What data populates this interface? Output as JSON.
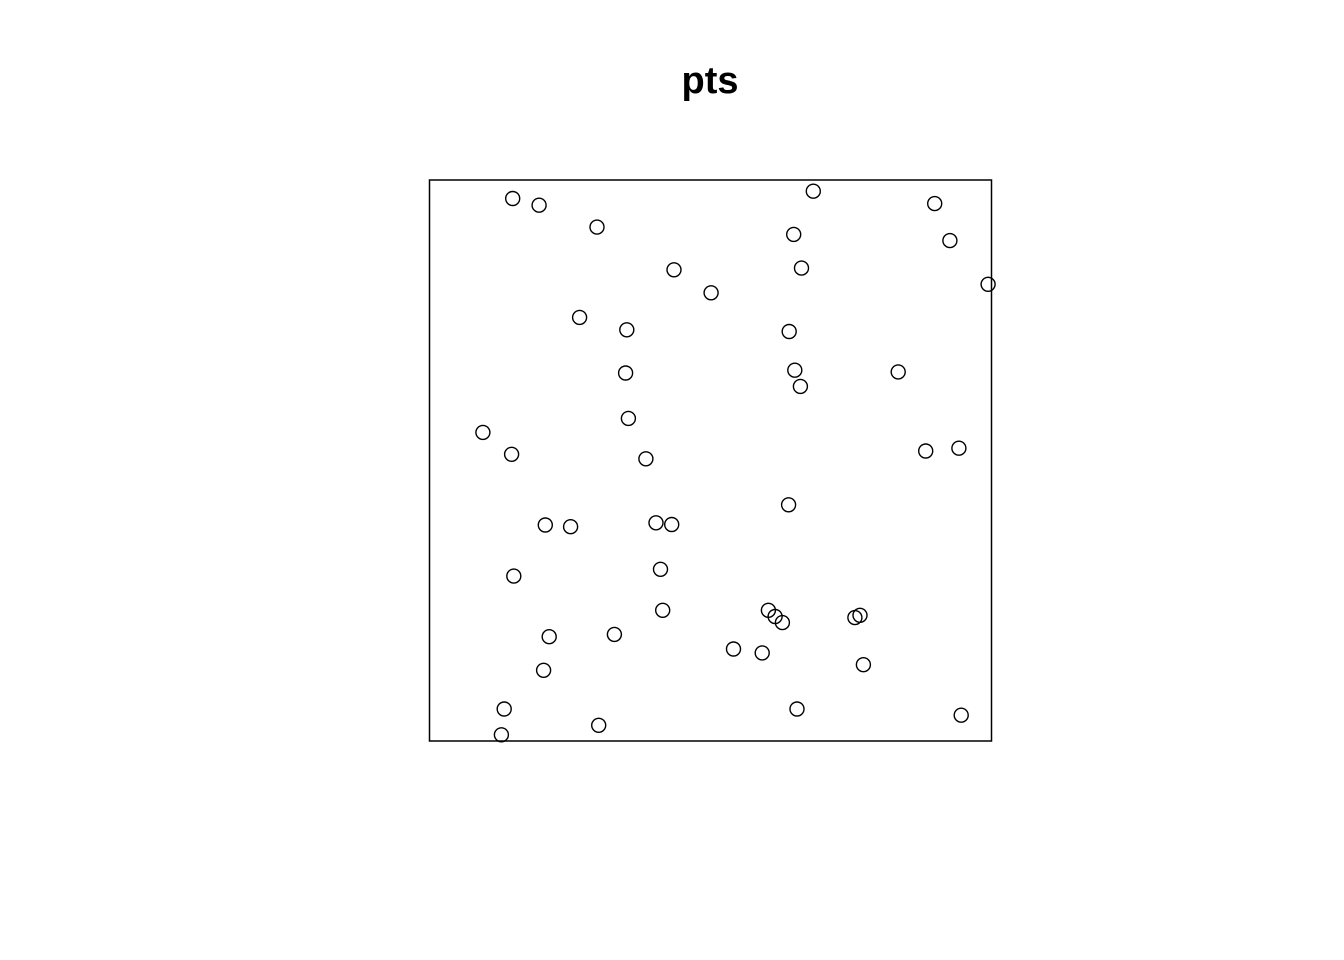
{
  "chart_data": {
    "type": "scatter",
    "title": "pts",
    "xlabel": "",
    "ylabel": "",
    "axes_shown": false,
    "grid": false,
    "legend": "none",
    "marker": "open-circle",
    "colors": {
      "stroke": "#000000",
      "background": "#ffffff"
    },
    "xlim": [
      0,
      1
    ],
    "ylim": [
      0,
      1
    ],
    "points": [
      {
        "x": 0.148,
        "y": 0.967
      },
      {
        "x": 0.195,
        "y": 0.955
      },
      {
        "x": 0.298,
        "y": 0.916
      },
      {
        "x": 0.683,
        "y": 0.98
      },
      {
        "x": 0.648,
        "y": 0.903
      },
      {
        "x": 0.899,
        "y": 0.958
      },
      {
        "x": 0.926,
        "y": 0.892
      },
      {
        "x": 0.435,
        "y": 0.84
      },
      {
        "x": 0.662,
        "y": 0.843
      },
      {
        "x": 0.501,
        "y": 0.799
      },
      {
        "x": 0.994,
        "y": 0.814
      },
      {
        "x": 0.267,
        "y": 0.755
      },
      {
        "x": 0.351,
        "y": 0.733
      },
      {
        "x": 0.64,
        "y": 0.73
      },
      {
        "x": 0.349,
        "y": 0.656
      },
      {
        "x": 0.65,
        "y": 0.661
      },
      {
        "x": 0.66,
        "y": 0.632
      },
      {
        "x": 0.834,
        "y": 0.658
      },
      {
        "x": 0.354,
        "y": 0.575
      },
      {
        "x": 0.095,
        "y": 0.55
      },
      {
        "x": 0.146,
        "y": 0.511
      },
      {
        "x": 0.385,
        "y": 0.503
      },
      {
        "x": 0.883,
        "y": 0.517
      },
      {
        "x": 0.942,
        "y": 0.522
      },
      {
        "x": 0.639,
        "y": 0.421
      },
      {
        "x": 0.206,
        "y": 0.385
      },
      {
        "x": 0.251,
        "y": 0.382
      },
      {
        "x": 0.403,
        "y": 0.389
      },
      {
        "x": 0.431,
        "y": 0.386
      },
      {
        "x": 0.411,
        "y": 0.306
      },
      {
        "x": 0.15,
        "y": 0.294
      },
      {
        "x": 0.415,
        "y": 0.233
      },
      {
        "x": 0.603,
        "y": 0.233
      },
      {
        "x": 0.615,
        "y": 0.222
      },
      {
        "x": 0.628,
        "y": 0.211
      },
      {
        "x": 0.757,
        "y": 0.22
      },
      {
        "x": 0.766,
        "y": 0.224
      },
      {
        "x": 0.213,
        "y": 0.186
      },
      {
        "x": 0.329,
        "y": 0.19
      },
      {
        "x": 0.541,
        "y": 0.164
      },
      {
        "x": 0.592,
        "y": 0.157
      },
      {
        "x": 0.772,
        "y": 0.136
      },
      {
        "x": 0.203,
        "y": 0.126
      },
      {
        "x": 0.133,
        "y": 0.057
      },
      {
        "x": 0.654,
        "y": 0.057
      },
      {
        "x": 0.946,
        "y": 0.046
      },
      {
        "x": 0.301,
        "y": 0.028
      },
      {
        "x": 0.128,
        "y": 0.011
      }
    ]
  }
}
